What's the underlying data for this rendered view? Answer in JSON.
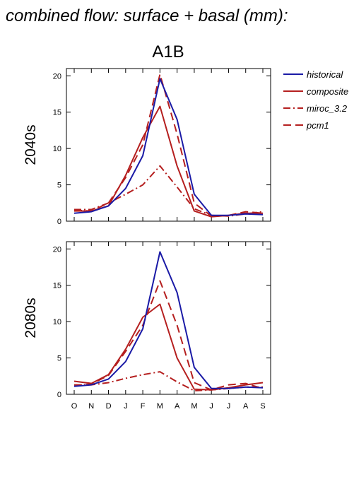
{
  "figure": {
    "title": "combined flow: surface + basal (mm):",
    "scenario": "A1B"
  },
  "legend": {
    "position": "top-right",
    "entries": [
      {
        "name": "historical",
        "color": "#1a1aa6",
        "dash": "solid"
      },
      {
        "name": "composite",
        "color": "#b51f1f",
        "dash": "solid"
      },
      {
        "name": "miroc_3.2",
        "color": "#b51f1f",
        "dash": "dashdot"
      },
      {
        "name": "pcm1",
        "color": "#b51f1f",
        "dash": "dashed"
      }
    ]
  },
  "chart_data": [
    {
      "type": "line",
      "row_label": "2040s",
      "categories": [
        "O",
        "N",
        "D",
        "J",
        "F",
        "M",
        "A",
        "M",
        "J",
        "J",
        "A",
        "S"
      ],
      "ylim": [
        0,
        21
      ],
      "yticks": [
        0,
        5,
        10,
        15,
        20
      ],
      "grid": false,
      "series": [
        {
          "name": "historical",
          "values": [
            1.1,
            1.3,
            2.1,
            4.5,
            9.0,
            19.6,
            14.0,
            3.7,
            0.8,
            0.8,
            1.0,
            0.9
          ]
        },
        {
          "name": "composite",
          "values": [
            1.4,
            1.4,
            2.1,
            6.3,
            11.5,
            15.8,
            7.6,
            1.4,
            0.6,
            0.8,
            1.1,
            1.1
          ]
        },
        {
          "name": "miroc_3.2",
          "values": [
            1.6,
            1.6,
            2.5,
            3.7,
            5.0,
            7.6,
            4.7,
            1.7,
            0.8,
            0.7,
            1.0,
            1.3
          ]
        },
        {
          "name": "pcm1",
          "values": [
            1.5,
            1.4,
            2.5,
            6.0,
            10.5,
            20.2,
            12.0,
            2.5,
            0.7,
            0.8,
            1.3,
            1.1
          ]
        }
      ]
    },
    {
      "type": "line",
      "row_label": "2080s",
      "categories": [
        "O",
        "N",
        "D",
        "J",
        "F",
        "M",
        "A",
        "M",
        "J",
        "J",
        "A",
        "S"
      ],
      "ylim": [
        0,
        21
      ],
      "yticks": [
        0,
        5,
        10,
        15,
        20
      ],
      "grid": false,
      "series": [
        {
          "name": "historical",
          "values": [
            1.1,
            1.3,
            2.1,
            4.5,
            9.0,
            19.6,
            14.0,
            3.7,
            0.8,
            0.8,
            1.0,
            0.9
          ]
        },
        {
          "name": "composite",
          "values": [
            1.8,
            1.5,
            2.7,
            6.2,
            10.6,
            12.4,
            5.0,
            0.7,
            0.6,
            0.9,
            1.3,
            1.6
          ]
        },
        {
          "name": "miroc_3.2",
          "values": [
            1.3,
            1.3,
            1.6,
            2.2,
            2.7,
            3.1,
            1.7,
            0.5,
            0.6,
            0.8,
            1.0,
            1.0
          ]
        },
        {
          "name": "pcm1",
          "values": [
            1.2,
            1.4,
            2.6,
            5.9,
            9.5,
            15.6,
            9.5,
            1.6,
            0.6,
            1.3,
            1.5,
            0.8
          ]
        }
      ]
    }
  ]
}
